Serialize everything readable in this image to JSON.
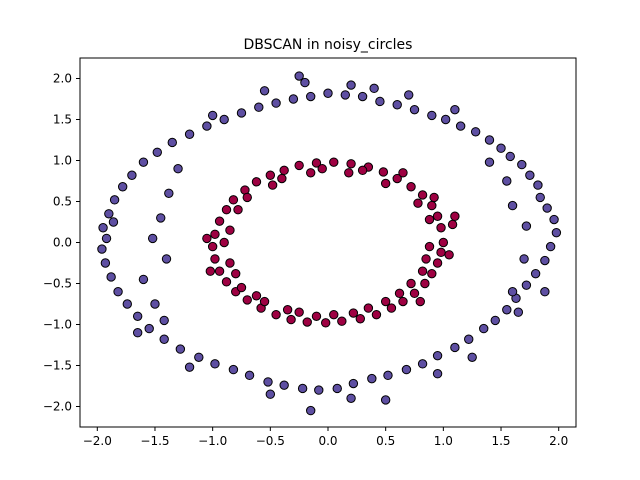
{
  "chart_data": {
    "type": "scatter",
    "title": "DBSCAN in noisy_circles",
    "xlabel": "",
    "ylabel": "",
    "xlim": [
      -2.15,
      2.15
    ],
    "ylim": [
      -2.25,
      2.25
    ],
    "xticks": [
      -2.0,
      -1.5,
      -1.0,
      -0.5,
      0.0,
      0.5,
      1.0,
      1.5,
      2.0
    ],
    "xtick_labels": [
      "−2.0",
      "−1.5",
      "−1.0",
      "−0.5",
      "0.0",
      "0.5",
      "1.0",
      "1.5",
      "2.0"
    ],
    "yticks": [
      2.0,
      1.5,
      1.0,
      0.5,
      0.0,
      -0.5,
      -1.0,
      -1.5,
      -2.0
    ],
    "ytick_labels": [
      "2.0",
      "1.5",
      "1.0",
      "0.5",
      "0.0",
      "−0.5",
      "−1.0",
      "−1.5",
      "−2.0"
    ],
    "grid": false,
    "legend": "none",
    "series": [
      {
        "color": "#5e4fa2",
        "edgecolor": "#000000",
        "points": [
          [
            1.98,
            0.12
          ],
          [
            1.93,
            -0.05
          ],
          [
            1.96,
            0.28
          ],
          [
            1.9,
            0.42
          ],
          [
            1.88,
            -0.22
          ],
          [
            1.84,
            0.55
          ],
          [
            1.8,
            -0.38
          ],
          [
            1.82,
            0.7
          ],
          [
            1.75,
            0.82
          ],
          [
            1.72,
            -0.52
          ],
          [
            1.68,
            0.95
          ],
          [
            1.63,
            -0.68
          ],
          [
            1.58,
            1.05
          ],
          [
            1.55,
            -0.82
          ],
          [
            1.5,
            1.15
          ],
          [
            1.45,
            -0.95
          ],
          [
            1.4,
            1.25
          ],
          [
            1.35,
            -1.05
          ],
          [
            1.28,
            1.35
          ],
          [
            1.22,
            -1.18
          ],
          [
            1.15,
            1.42
          ],
          [
            1.1,
            -1.28
          ],
          [
            1.02,
            1.5
          ],
          [
            0.95,
            -1.38
          ],
          [
            0.9,
            1.55
          ],
          [
            0.82,
            -1.48
          ],
          [
            0.75,
            1.62
          ],
          [
            0.68,
            -1.55
          ],
          [
            0.6,
            1.68
          ],
          [
            0.52,
            -1.62
          ],
          [
            0.45,
            1.72
          ],
          [
            0.38,
            -1.66
          ],
          [
            0.3,
            1.78
          ],
          [
            0.22,
            -1.72
          ],
          [
            0.15,
            1.8
          ],
          [
            0.08,
            -1.78
          ],
          [
            0.0,
            1.82
          ],
          [
            -0.08,
            -1.8
          ],
          [
            -0.15,
            1.78
          ],
          [
            -0.22,
            -1.78
          ],
          [
            -0.3,
            1.75
          ],
          [
            -0.38,
            -1.74
          ],
          [
            -0.45,
            1.7
          ],
          [
            -0.52,
            -1.7
          ],
          [
            -0.6,
            1.65
          ],
          [
            -0.68,
            -1.62
          ],
          [
            -0.75,
            1.58
          ],
          [
            -0.82,
            -1.55
          ],
          [
            -0.9,
            1.5
          ],
          [
            -0.98,
            -1.48
          ],
          [
            -1.05,
            1.42
          ],
          [
            -1.12,
            -1.4
          ],
          [
            -1.2,
            1.32
          ],
          [
            -1.28,
            -1.3
          ],
          [
            -1.35,
            1.22
          ],
          [
            -1.42,
            -1.18
          ],
          [
            -1.48,
            1.1
          ],
          [
            -1.55,
            -1.05
          ],
          [
            -1.6,
            0.98
          ],
          [
            -1.65,
            -0.9
          ],
          [
            -1.7,
            0.82
          ],
          [
            -1.74,
            -0.75
          ],
          [
            -1.78,
            0.68
          ],
          [
            -1.82,
            -0.6
          ],
          [
            -1.85,
            0.52
          ],
          [
            -1.88,
            -0.42
          ],
          [
            -1.9,
            0.35
          ],
          [
            -1.93,
            -0.25
          ],
          [
            -1.95,
            0.18
          ],
          [
            -1.96,
            -0.08
          ],
          [
            -1.92,
            0.05
          ],
          [
            -1.86,
            0.25
          ],
          [
            -1.52,
            0.05
          ],
          [
            -1.45,
            0.3
          ],
          [
            -1.4,
            -0.2
          ],
          [
            -1.38,
            0.6
          ],
          [
            -1.3,
            0.9
          ],
          [
            -1.6,
            -0.45
          ],
          [
            -1.5,
            -0.75
          ],
          [
            -1.42,
            -0.95
          ],
          [
            -0.25,
            2.03
          ],
          [
            -0.2,
            1.95
          ],
          [
            -0.55,
            1.85
          ],
          [
            0.2,
            1.92
          ],
          [
            0.4,
            1.88
          ],
          [
            0.7,
            1.8
          ],
          [
            1.1,
            1.62
          ],
          [
            -1.0,
            1.55
          ],
          [
            0.5,
            -1.92
          ],
          [
            -0.15,
            -2.05
          ],
          [
            0.2,
            -1.9
          ],
          [
            -0.5,
            -1.85
          ],
          [
            0.95,
            -1.6
          ],
          [
            1.25,
            -1.4
          ],
          [
            -1.2,
            -1.52
          ],
          [
            -1.65,
            -1.1
          ],
          [
            1.6,
            -0.6
          ],
          [
            1.7,
            -0.2
          ],
          [
            1.72,
            0.2
          ],
          [
            1.6,
            0.45
          ],
          [
            1.55,
            0.75
          ],
          [
            1.4,
            0.98
          ],
          [
            1.65,
            -0.85
          ],
          [
            1.88,
            -0.6
          ]
        ]
      },
      {
        "color": "#9e0142",
        "edgecolor": "#000000",
        "points": [
          [
            1.0,
            0.0
          ],
          [
            0.98,
            0.18
          ],
          [
            0.95,
            0.32
          ],
          [
            0.9,
            0.45
          ],
          [
            0.82,
            0.58
          ],
          [
            0.72,
            0.68
          ],
          [
            0.6,
            0.78
          ],
          [
            0.48,
            0.86
          ],
          [
            0.35,
            0.92
          ],
          [
            0.2,
            0.96
          ],
          [
            0.05,
            0.98
          ],
          [
            -0.1,
            0.97
          ],
          [
            -0.25,
            0.94
          ],
          [
            -0.38,
            0.88
          ],
          [
            -0.5,
            0.82
          ],
          [
            -0.62,
            0.74
          ],
          [
            -0.72,
            0.64
          ],
          [
            -0.82,
            0.52
          ],
          [
            -0.88,
            0.4
          ],
          [
            -0.94,
            0.26
          ],
          [
            -0.98,
            0.1
          ],
          [
            -1.0,
            -0.05
          ],
          [
            -0.98,
            -0.2
          ],
          [
            -0.94,
            -0.35
          ],
          [
            -0.88,
            -0.48
          ],
          [
            -0.8,
            -0.6
          ],
          [
            -0.7,
            -0.7
          ],
          [
            -0.58,
            -0.8
          ],
          [
            -0.45,
            -0.88
          ],
          [
            -0.32,
            -0.94
          ],
          [
            -0.18,
            -0.97
          ],
          [
            -0.02,
            -0.98
          ],
          [
            0.12,
            -0.96
          ],
          [
            0.28,
            -0.93
          ],
          [
            0.42,
            -0.88
          ],
          [
            0.55,
            -0.8
          ],
          [
            0.65,
            -0.72
          ],
          [
            0.75,
            -0.62
          ],
          [
            0.84,
            -0.5
          ],
          [
            0.9,
            -0.38
          ],
          [
            0.95,
            -0.25
          ],
          [
            0.98,
            -0.12
          ],
          [
            1.08,
            0.22
          ],
          [
            1.05,
            -0.15
          ],
          [
            0.92,
            0.55
          ],
          [
            0.65,
            0.85
          ],
          [
            0.3,
            0.88
          ],
          [
            -0.05,
            0.9
          ],
          [
            -0.4,
            0.78
          ],
          [
            -0.7,
            0.55
          ],
          [
            -0.85,
            0.15
          ],
          [
            -0.85,
            -0.25
          ],
          [
            -0.75,
            -0.55
          ],
          [
            -0.55,
            -0.72
          ],
          [
            -0.25,
            -0.85
          ],
          [
            0.05,
            -0.88
          ],
          [
            0.35,
            -0.8
          ],
          [
            0.62,
            -0.62
          ],
          [
            0.82,
            -0.35
          ],
          [
            0.88,
            -0.05
          ],
          [
            0.88,
            0.28
          ],
          [
            0.78,
            0.48
          ],
          [
            0.5,
            0.72
          ],
          [
            0.18,
            0.85
          ],
          [
            -0.15,
            0.85
          ],
          [
            -0.48,
            0.7
          ],
          [
            -0.78,
            0.4
          ],
          [
            -0.9,
            0.0
          ],
          [
            -0.8,
            -0.38
          ],
          [
            -0.62,
            -0.65
          ],
          [
            -0.35,
            -0.82
          ],
          [
            -0.1,
            -0.9
          ],
          [
            0.22,
            -0.86
          ],
          [
            0.5,
            -0.72
          ],
          [
            0.72,
            -0.5
          ],
          [
            0.85,
            -0.2
          ],
          [
            1.1,
            0.32
          ],
          [
            -1.05,
            0.05
          ],
          [
            -1.02,
            -0.35
          ],
          [
            0.8,
            -0.72
          ]
        ]
      }
    ]
  }
}
